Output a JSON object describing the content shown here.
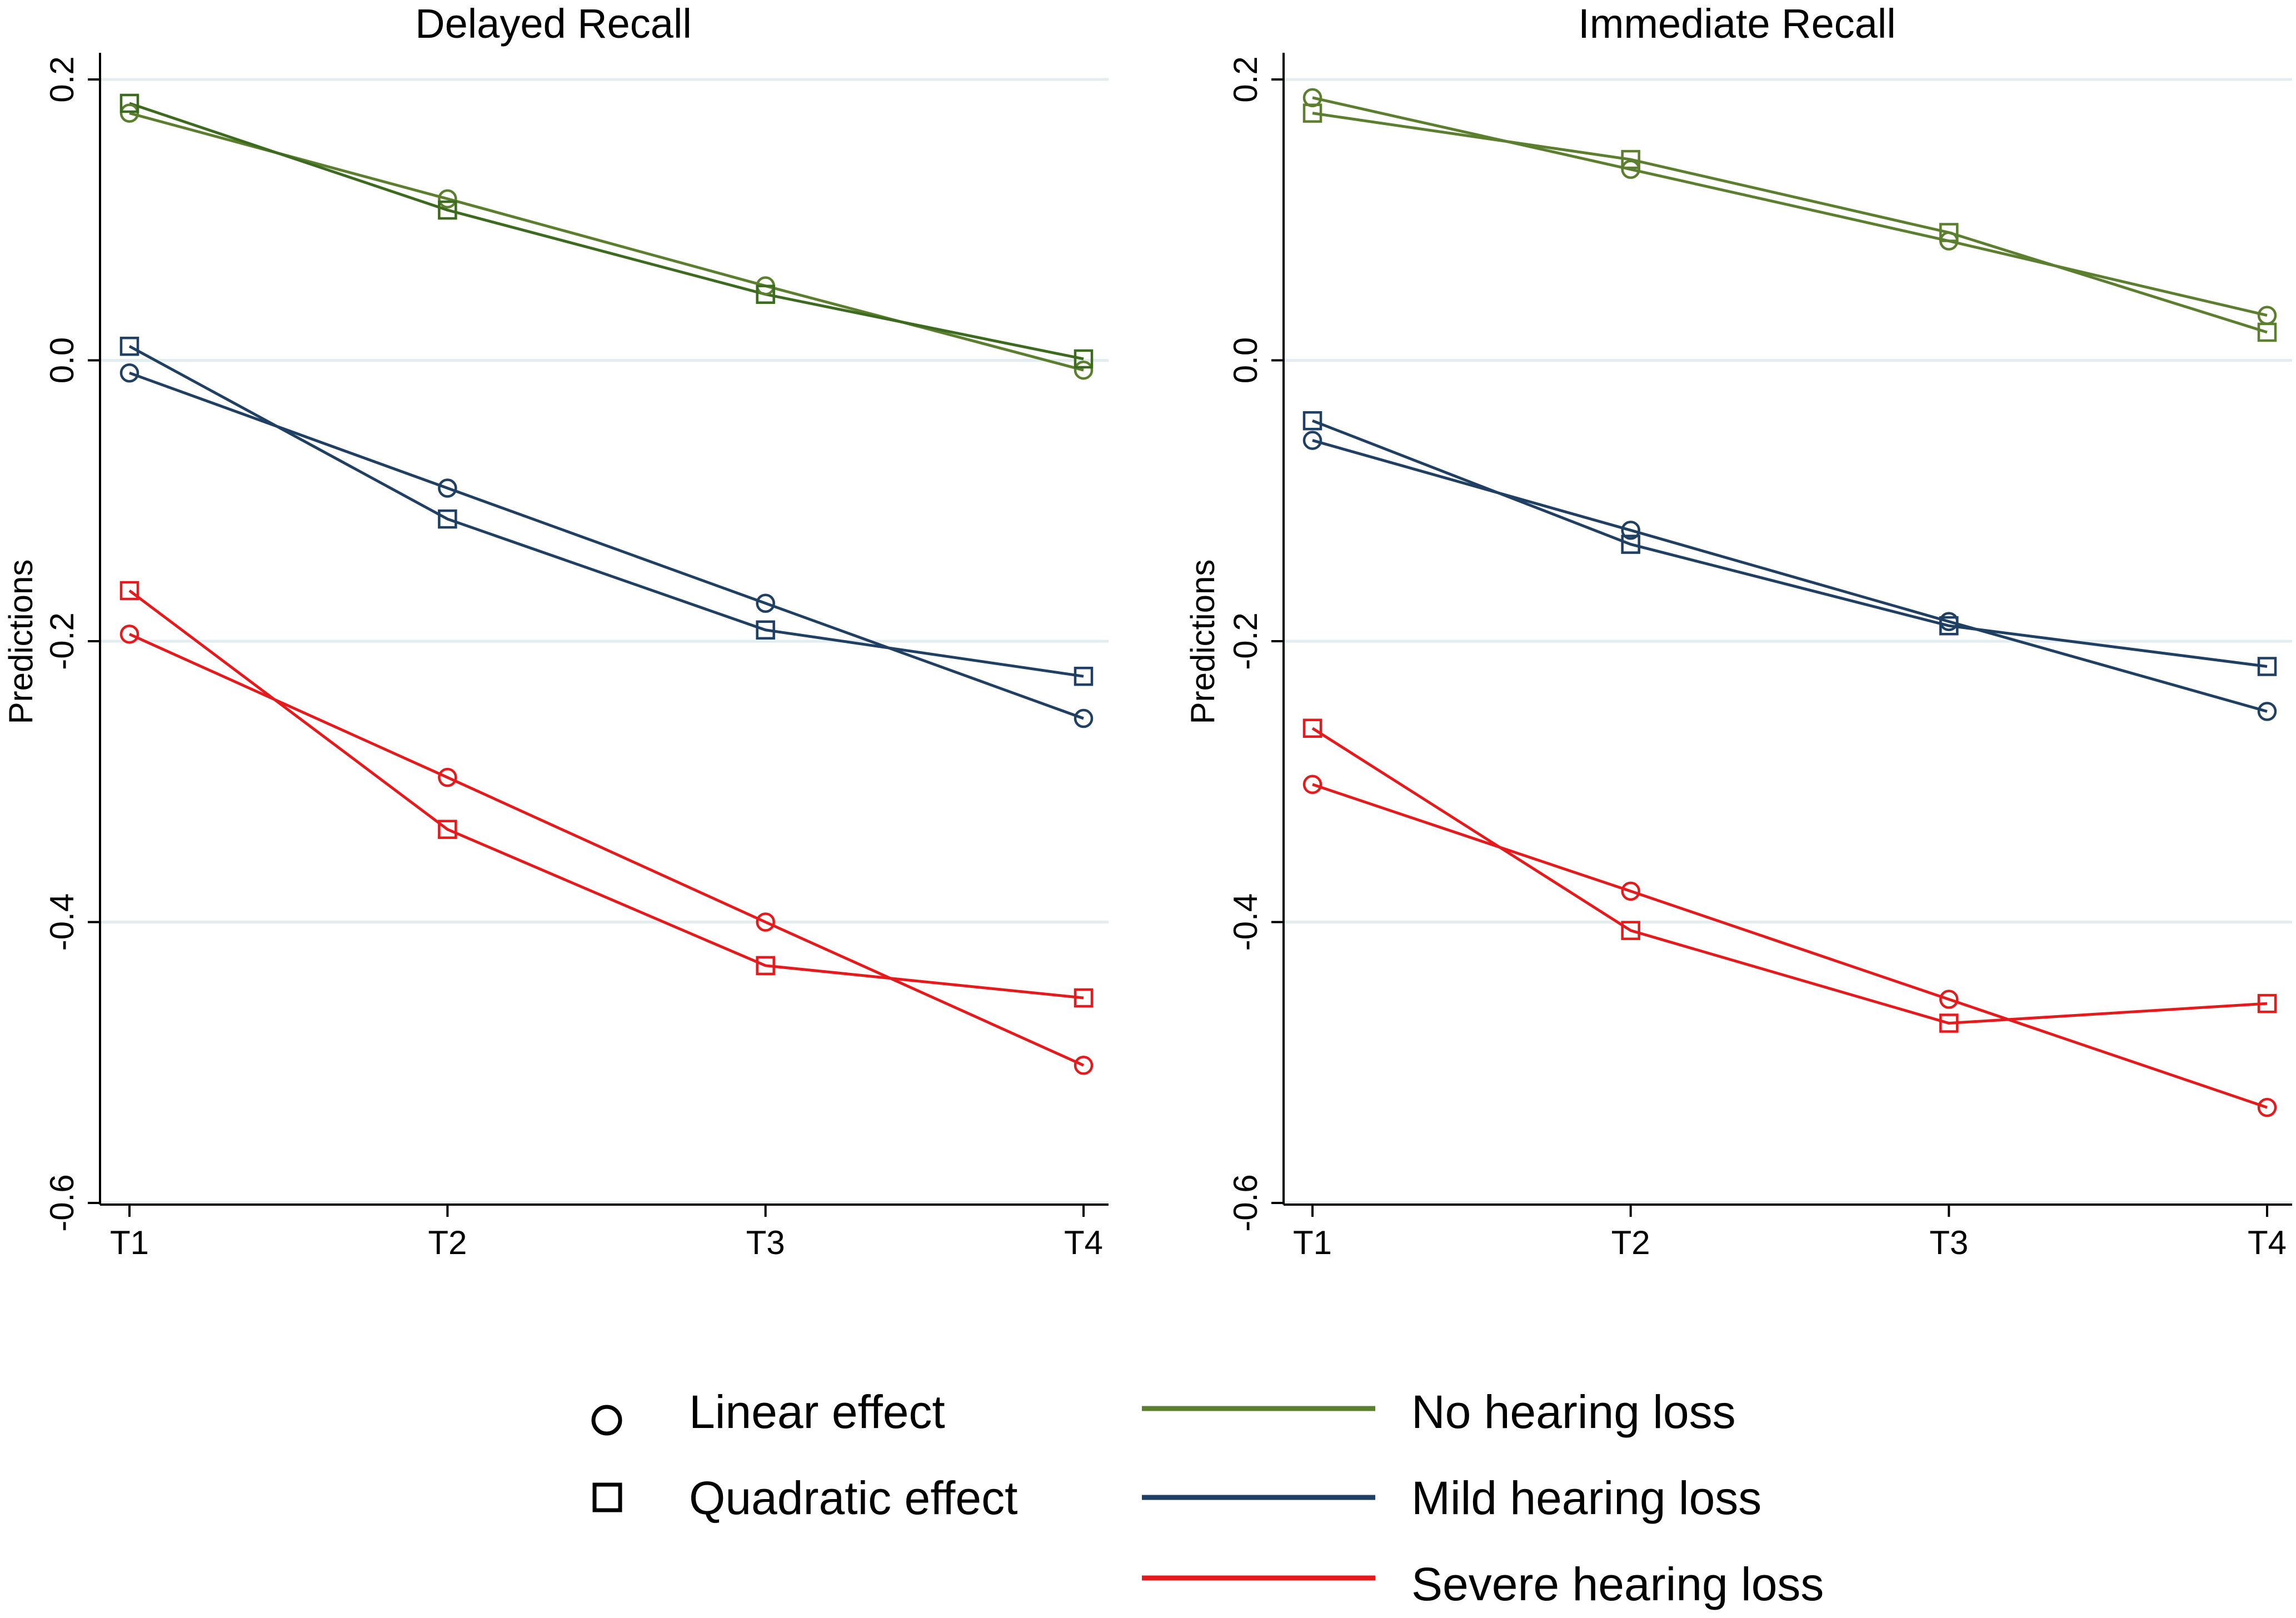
{
  "chart_data": [
    {
      "type": "line",
      "title": "Delayed Recall",
      "xlabel": "",
      "ylabel": "Predictions",
      "categories": [
        "T1",
        "T2",
        "T3",
        "T4"
      ],
      "ylim": [
        -0.6,
        0.2
      ],
      "yticks": [
        -0.6,
        -0.4,
        -0.2,
        0.0,
        0.2
      ],
      "ytick_labels": [
        "-0.6",
        "-0.4",
        "-0.2",
        "0.0",
        "0.2"
      ],
      "grid": true,
      "series": [
        {
          "name": "No hearing loss",
          "effect": "Linear effect",
          "marker": "circle",
          "color": "#5b7f2e",
          "values": [
            0.176,
            0.115,
            0.053,
            -0.007
          ]
        },
        {
          "name": "No hearing loss",
          "effect": "Quadratic effect",
          "marker": "square",
          "color": "#3c6a1f",
          "values": [
            0.183,
            0.107,
            0.047,
            0.001
          ]
        },
        {
          "name": "Mild hearing loss",
          "effect": "Linear effect",
          "marker": "circle",
          "color": "#1f3f63",
          "values": [
            -0.009,
            -0.091,
            -0.173,
            -0.255
          ]
        },
        {
          "name": "Mild hearing loss",
          "effect": "Quadratic effect",
          "marker": "square",
          "color": "#1f3f63",
          "values": [
            0.01,
            -0.113,
            -0.192,
            -0.225
          ]
        },
        {
          "name": "Severe hearing loss",
          "effect": "Linear effect",
          "marker": "circle",
          "color": "#e41a1c",
          "values": [
            -0.195,
            -0.297,
            -0.4,
            -0.502
          ]
        },
        {
          "name": "Severe hearing loss",
          "effect": "Quadratic effect",
          "marker": "square",
          "color": "#e41a1c",
          "values": [
            -0.164,
            -0.334,
            -0.431,
            -0.454
          ]
        }
      ]
    },
    {
      "type": "line",
      "title": "Immediate Recall",
      "xlabel": "",
      "ylabel": "Predictions",
      "categories": [
        "T1",
        "T2",
        "T3",
        "T4"
      ],
      "ylim": [
        -0.6,
        0.2
      ],
      "yticks": [
        -0.6,
        -0.4,
        -0.2,
        0.0,
        0.2
      ],
      "ytick_labels": [
        "-0.6",
        "-0.4",
        "-0.2",
        "0.0",
        "0.2"
      ],
      "grid": true,
      "series": [
        {
          "name": "No hearing loss",
          "effect": "Linear effect",
          "marker": "circle",
          "color": "#5b7f2e",
          "values": [
            0.187,
            0.136,
            0.085,
            0.032
          ]
        },
        {
          "name": "No hearing loss",
          "effect": "Quadratic effect",
          "marker": "square",
          "color": "#5b7f2e",
          "values": [
            0.176,
            0.143,
            0.091,
            0.02
          ]
        },
        {
          "name": "Mild hearing loss",
          "effect": "Linear effect",
          "marker": "circle",
          "color": "#1f3f63",
          "values": [
            -0.057,
            -0.121,
            -0.186,
            -0.25
          ]
        },
        {
          "name": "Mild hearing loss",
          "effect": "Quadratic effect",
          "marker": "square",
          "color": "#1f3f63",
          "values": [
            -0.043,
            -0.131,
            -0.189,
            -0.218
          ]
        },
        {
          "name": "Severe hearing loss",
          "effect": "Linear effect",
          "marker": "circle",
          "color": "#e41a1c",
          "values": [
            -0.302,
            -0.378,
            -0.455,
            -0.532
          ]
        },
        {
          "name": "Severe hearing loss",
          "effect": "Quadratic effect",
          "marker": "square",
          "color": "#e41a1c",
          "values": [
            -0.262,
            -0.406,
            -0.472,
            -0.458
          ]
        }
      ]
    }
  ],
  "legend": {
    "placement": "bottom",
    "markers": [
      {
        "label": "Linear effect",
        "icon": "circle-marker-icon"
      },
      {
        "label": "Quadratic effect",
        "icon": "square-marker-icon"
      }
    ],
    "lines": [
      {
        "label": "No hearing loss",
        "color": "#5b7f2e"
      },
      {
        "label": "Mild hearing loss",
        "color": "#1f3f63"
      },
      {
        "label": "Severe hearing loss",
        "color": "#e41a1c"
      }
    ]
  }
}
